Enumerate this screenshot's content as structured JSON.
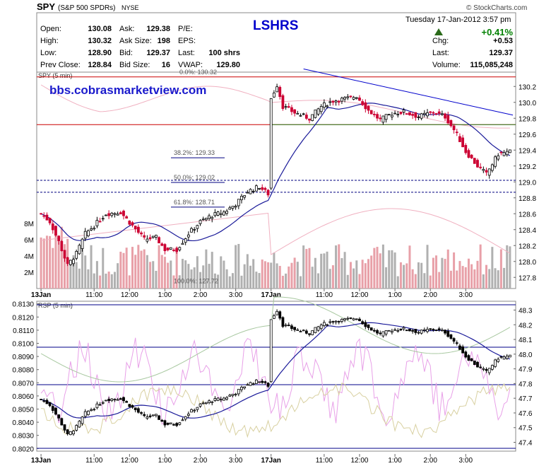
{
  "header": {
    "symbol": "SPY",
    "name": "(S&P 500 SPDRs)",
    "exchange": "NYSE",
    "copyright": "© StockCharts.com",
    "overlay_title": "LSHRS",
    "date": "Tuesday  17-Jan-2012  3:57 pm",
    "pct_change": "+0.41%",
    "fields_left": [
      {
        "label": "Open:",
        "value": "130.08"
      },
      {
        "label": "High:",
        "value": "130.32"
      },
      {
        "label": "Low:",
        "value": "128.90"
      },
      {
        "label": "Prev Close:",
        "value": "128.84"
      }
    ],
    "fields_mid": [
      {
        "label": "Ask:",
        "value": "129.38"
      },
      {
        "label": "Ask Size:",
        "value": "198"
      },
      {
        "label": "Bid:",
        "value": "129.37"
      },
      {
        "label": "Bid Size:",
        "value": "16"
      }
    ],
    "fields_mid2": [
      {
        "label": "P/E:",
        "value": ""
      },
      {
        "label": "EPS:",
        "value": ""
      },
      {
        "label": "Last:",
        "value": "100 shrs"
      },
      {
        "label": "VWAP:",
        "value": "129.80"
      }
    ],
    "fields_right": [
      {
        "label": "Chg:",
        "value": "+0.53"
      },
      {
        "label": "Last:",
        "value": "129.37"
      },
      {
        "label": "Volume:",
        "value": "115,085,248"
      }
    ]
  },
  "watermark": "bbs.cobrasmarketview.com",
  "chart_data": [
    {
      "type": "candlestick",
      "title": "SPY (5 min)",
      "x_labels": [
        "13Jan",
        "11:00",
        "12:00",
        "1:00",
        "2:00",
        "3:00",
        "17Jan",
        "11:00",
        "12:00",
        "1:00",
        "2:00",
        "3:00"
      ],
      "y_ticks": [
        130.2,
        130.0,
        129.8,
        129.6,
        129.4,
        129.2,
        129.0,
        128.8,
        128.6,
        128.4,
        128.2,
        128.0,
        127.8
      ],
      "ylim": [
        127.66,
        130.38
      ],
      "volume_ticks": [
        "8M",
        "6M",
        "4M",
        "2M"
      ],
      "fib_levels": [
        {
          "label": "0.0%: 130.32",
          "value": 130.32
        },
        {
          "label": "38.2%: 129.33",
          "value": 129.33
        },
        {
          "label": "50.0%: 129.02",
          "value": 129.02
        },
        {
          "label": "61.8%: 128.71",
          "value": 128.71
        },
        {
          "label": "100.0%: 127.72",
          "value": 127.72
        }
      ],
      "horizontal_lines": [
        {
          "value": 130.32,
          "color": "#cc0000",
          "style": "solid"
        },
        {
          "value": 129.72,
          "color": "#cc0000",
          "style": "solid"
        },
        {
          "value": 129.02,
          "color": "#000080",
          "style": "dashed"
        },
        {
          "value": 128.87,
          "color": "#000080",
          "style": "dashed"
        }
      ],
      "trendline": {
        "from": [
          89,
          130.42
        ],
        "to": [
          160,
          129.84
        ],
        "color": "#0000cc"
      }
    },
    {
      "type": "line",
      "title": "RSP (5 min)",
      "y_ticks_left": [
        0.813,
        0.812,
        0.811,
        0.81,
        0.809,
        0.808,
        0.807,
        0.806,
        0.805,
        0.804,
        0.803,
        0.802
      ],
      "y_labels_left": [
        "0.8130",
        "0.8120",
        "0.8110",
        "0.8100",
        "0.8090",
        "0.8080",
        "0.8070",
        "0.8060",
        "0.8050",
        "0.8040",
        "0.8030",
        "0.8020"
      ],
      "y_ticks_right": [
        "48.3",
        "48.2",
        "48.1",
        "48.0",
        "47.9",
        "47.8",
        "47.7",
        "47.6",
        "47.5",
        "47.4"
      ],
      "x_labels": [
        "13Jan",
        "11:00",
        "12:00",
        "1:00",
        "2:00",
        "3:00",
        "17Jan",
        "11:00",
        "12:00",
        "1:00",
        "2:00",
        "3:00"
      ]
    }
  ],
  "colors": {
    "up": "#000000",
    "down": "#cc0033",
    "ma": "#1a1a99",
    "vwap_band": "#f0b0c0",
    "volume_up": "#b0b0b0",
    "volume_down": "#e8a0a8",
    "watermark": "#1a1acc",
    "title": "#0000cc",
    "positive": "#008000"
  }
}
